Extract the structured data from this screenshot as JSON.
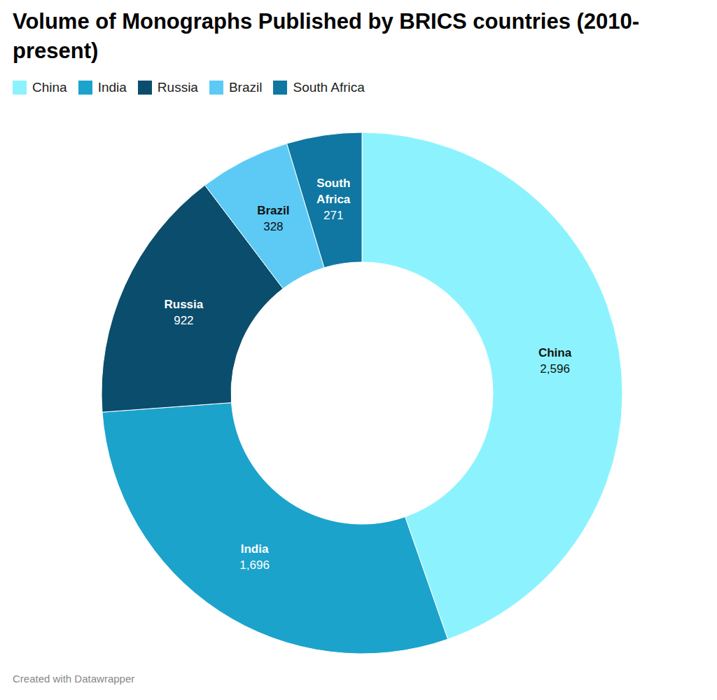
{
  "chart_data": {
    "type": "pie",
    "title": "Volume of Monographs Published by BRICS countries (2010-present)",
    "categories": [
      "China",
      "India",
      "Russia",
      "Brazil",
      "South Africa"
    ],
    "values": [
      2596,
      1696,
      922,
      328,
      271
    ],
    "value_labels": [
      "2,596",
      "1,696",
      "922",
      "328",
      "271"
    ],
    "colors": [
      "#8cf3fe",
      "#1ba3cc",
      "#0b4d6c",
      "#5ccaf5",
      "#0f77a1"
    ],
    "data_labels": true,
    "legend": "top",
    "footer": "Created with Datawrapper"
  }
}
